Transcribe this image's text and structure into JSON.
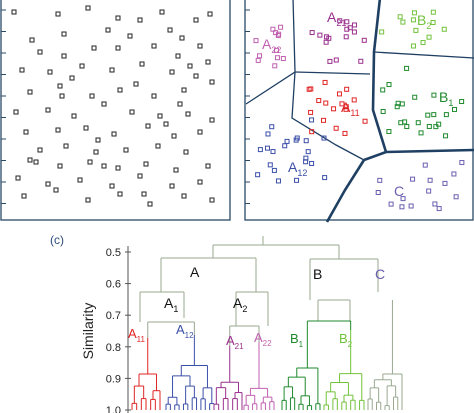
{
  "colors": {
    "axis": "#2a4a66",
    "boundary": "#1f3f63",
    "box_left": "#222222",
    "a11": "#e02525",
    "a12": "#3b4fa8",
    "a21": "#9a2f8d",
    "a22": "#c060b0",
    "b1": "#1f8a2e",
    "b2": "#72c23c",
    "c": "#6a5fb0",
    "root": "#9aa890",
    "panel_label": "#2c4d7c"
  },
  "panel_c_label": "(c)",
  "dendrogram": {
    "ylabel": "Similarity",
    "ticks": [
      "0.5",
      "0.6",
      "0.7",
      "0.8",
      "0.9",
      "1.0"
    ],
    "tick_values": [
      0.5,
      0.6,
      0.7,
      0.8,
      0.9,
      1.0
    ]
  },
  "labels": {
    "A": "A",
    "B": "B",
    "C": "C",
    "A1": {
      "base": "A",
      "sub": "1"
    },
    "A2": {
      "base": "A",
      "sub": "2"
    },
    "A11": {
      "base": "A",
      "sub": "11"
    },
    "A12": {
      "base": "A",
      "sub": "12"
    },
    "A21": {
      "base": "A",
      "sub": "21"
    },
    "A22": {
      "base": "A",
      "sub": "22"
    },
    "B1": {
      "base": "B",
      "sub": "1"
    },
    "B2": {
      "base": "B",
      "sub": "2"
    }
  }
}
